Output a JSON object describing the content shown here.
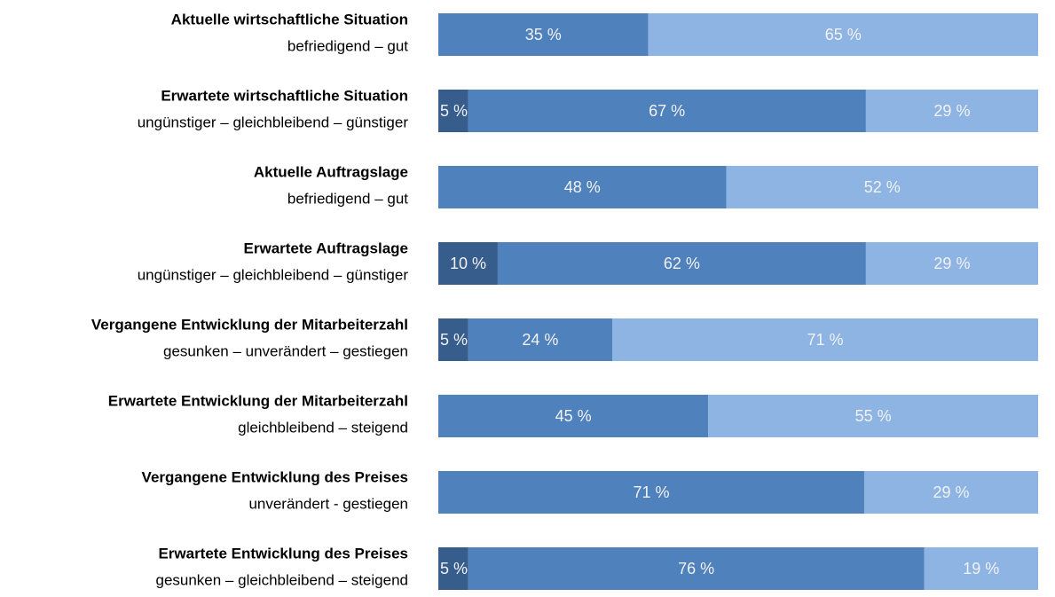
{
  "chart_data": {
    "type": "bar",
    "orientation": "horizontal",
    "stacked": true,
    "rows": [
      {
        "label": "Aktuelle wirtschaftliche Situation",
        "sublabel": "befriedigend – gut",
        "values": [
          35,
          65
        ],
        "value_labels": [
          "35 %",
          "65 %"
        ],
        "colors": [
          "#4f81bd",
          "#8eb4e3"
        ]
      },
      {
        "label": "Erwartete wirtschaftliche Situation",
        "sublabel": "ungünstiger – gleichbleibend – günstiger",
        "values": [
          5,
          67,
          29
        ],
        "value_labels": [
          "5 %",
          "67 %",
          "29 %"
        ],
        "colors": [
          "#375d8c",
          "#4f81bd",
          "#8eb4e3"
        ]
      },
      {
        "label": "Aktuelle Auftragslage",
        "sublabel": "befriedigend – gut",
        "values": [
          48,
          52
        ],
        "value_labels": [
          "48 %",
          "52 %"
        ],
        "colors": [
          "#4f81bd",
          "#8eb4e3"
        ]
      },
      {
        "label": "Erwartete Auftragslage",
        "sublabel": "ungünstiger – gleichbleibend – günstiger",
        "values": [
          10,
          62,
          29
        ],
        "value_labels": [
          "10 %",
          "62 %",
          "29 %"
        ],
        "colors": [
          "#375d8c",
          "#4f81bd",
          "#8eb4e3"
        ]
      },
      {
        "label": "Vergangene Entwicklung der Mitarbeiterzahl",
        "sublabel": "gesunken – unverändert – gestiegen",
        "values": [
          5,
          24,
          71
        ],
        "value_labels": [
          "5 %",
          "24 %",
          "71 %"
        ],
        "colors": [
          "#375d8c",
          "#4f81bd",
          "#8eb4e3"
        ]
      },
      {
        "label": "Erwartete Entwicklung der Mitarbeiterzahl",
        "sublabel": "gleichbleibend – steigend",
        "values": [
          45,
          55
        ],
        "value_labels": [
          "45 %",
          "55 %"
        ],
        "colors": [
          "#4f81bd",
          "#8eb4e3"
        ]
      },
      {
        "label": "Vergangene Entwicklung des Preises",
        "sublabel": "unverändert - gestiegen",
        "values": [
          71,
          29
        ],
        "value_labels": [
          "71 %",
          "29 %"
        ],
        "colors": [
          "#4f81bd",
          "#8eb4e3"
        ]
      },
      {
        "label": "Erwartete Entwicklung des Preises",
        "sublabel": "gesunken – gleichbleibend – steigend",
        "values": [
          5,
          76,
          19
        ],
        "value_labels": [
          "5 %",
          "76 %",
          "19 %"
        ],
        "colors": [
          "#375d8c",
          "#4f81bd",
          "#8eb4e3"
        ]
      }
    ]
  }
}
